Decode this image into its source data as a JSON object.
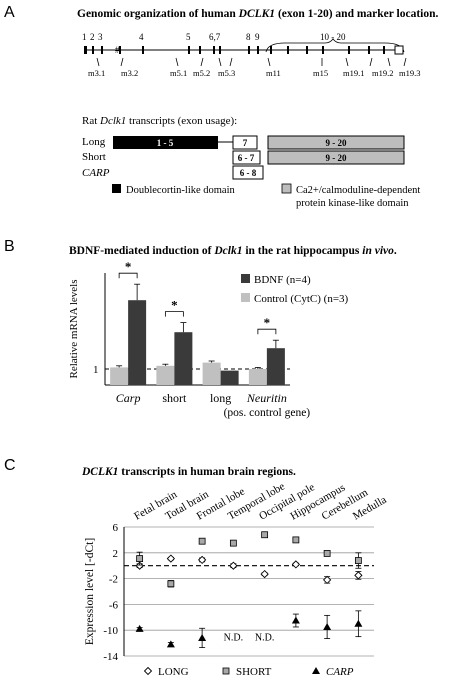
{
  "panel_a": {
    "letter": "A",
    "title_prefix": "Genomic organization of human ",
    "title_gene": "DCLK1",
    "title_suffix": " (exon 1-20) and marker location.",
    "exon_labels": [
      "1",
      "2",
      "3",
      "4",
      "5",
      "6,7",
      "8",
      "9",
      "10 - 20"
    ],
    "markers": [
      "m3.1",
      "m3.2",
      "m5.1",
      "m5.2",
      "m5.3",
      "m11",
      "m15",
      "m19.1",
      "m19.2",
      "m19.3"
    ],
    "rat_title_prefix": "Rat ",
    "rat_title_gene": "Dclk1",
    "rat_title_suffix": " transcripts (exon usage):",
    "transcripts": [
      {
        "name": "Long",
        "box1": "1 - 5",
        "box2": "7",
        "box3": "9 - 20"
      },
      {
        "name": "Short",
        "box2": "6 - 7",
        "box3": "9 - 20"
      },
      {
        "name": "CARP",
        "box2": "6 - 8"
      }
    ],
    "legend_dcx": "Doublecortin-like domain",
    "legend_kinase_line1": "Ca2+/calmoduline-dependent",
    "legend_kinase_line2": "protein kinase-like domain"
  },
  "panel_b": {
    "letter": "B",
    "title_prefix": "BDNF-mediated induction of ",
    "title_gene": "Dclk1",
    "title_mid": " in the rat hippocampus ",
    "title_italic": "in vivo",
    "title_end": ".",
    "star": "*",
    "reference_line_label": "1",
    "colors": {
      "bdnf": "#3a3a3a",
      "control": "#c0c0c0"
    },
    "chart_data": {
      "type": "bar",
      "categories": [
        "Carp",
        "short",
        "long",
        "Neuritin"
      ],
      "category_note": "(pos. control gene)",
      "ylabel": "Relative mRNA levels",
      "ylim": [
        0,
        7
      ],
      "yticks": [
        1,
        2,
        3,
        4,
        5,
        6
      ],
      "reference_line": 1,
      "series": [
        {
          "name": "BDNF (n=4)",
          "values": [
            5.3,
            3.3,
            0.9,
            2.3
          ],
          "errors": [
            1.0,
            0.6,
            0.0,
            0.5
          ]
        },
        {
          "name": "Control (CytC) (n=3)",
          "values": [
            1.1,
            1.2,
            1.4,
            1.0
          ],
          "errors": [
            0.1,
            0.1,
            0.1,
            0.1
          ]
        }
      ],
      "significant": [
        "Carp",
        "short",
        "Neuritin"
      ]
    }
  },
  "panel_c": {
    "letter": "C",
    "title_gene": "DCLK1",
    "title_suffix": " transcripts in human brain regions.",
    "nd_label": "N.D.",
    "chart_data": {
      "type": "scatter",
      "categories": [
        "Fetal brain",
        "Total brain",
        "Frontal lobe",
        "Temporal lobe",
        "Occipital pole",
        "Hippocampus",
        "Cerebellum",
        "Medulla"
      ],
      "ylabel": "Expression level [-dCt]",
      "ylim": [
        -14,
        6
      ],
      "yticks": [
        6,
        2,
        -2,
        -6,
        -10,
        -14
      ],
      "reference_line": 0,
      "series": [
        {
          "name": "LONG",
          "marker": "diamond-open",
          "values": [
            0,
            1.1,
            0.9,
            0,
            -1.3,
            0.2,
            -2.2,
            -1.5
          ],
          "errors": [
            0.3,
            0.2,
            0.3,
            0.3,
            0.2,
            0.2,
            0.5,
            0.6
          ]
        },
        {
          "name": "SHORT",
          "marker": "square-gray",
          "values": [
            1.1,
            -2.8,
            3.8,
            3.5,
            4.8,
            4.0,
            1.9,
            0.8
          ],
          "errors": [
            1.0,
            0.5,
            0.3,
            0.3,
            0.3,
            0.3,
            0.3,
            1.2
          ]
        },
        {
          "name": "CARP",
          "marker": "triangle-filled",
          "values": [
            -9.8,
            -12.2,
            -11.2,
            null,
            null,
            -8.5,
            -9.5,
            -9.0
          ],
          "errors": [
            0.2,
            0.3,
            1.5,
            null,
            null,
            1.0,
            1.8,
            2.0
          ]
        }
      ]
    }
  }
}
